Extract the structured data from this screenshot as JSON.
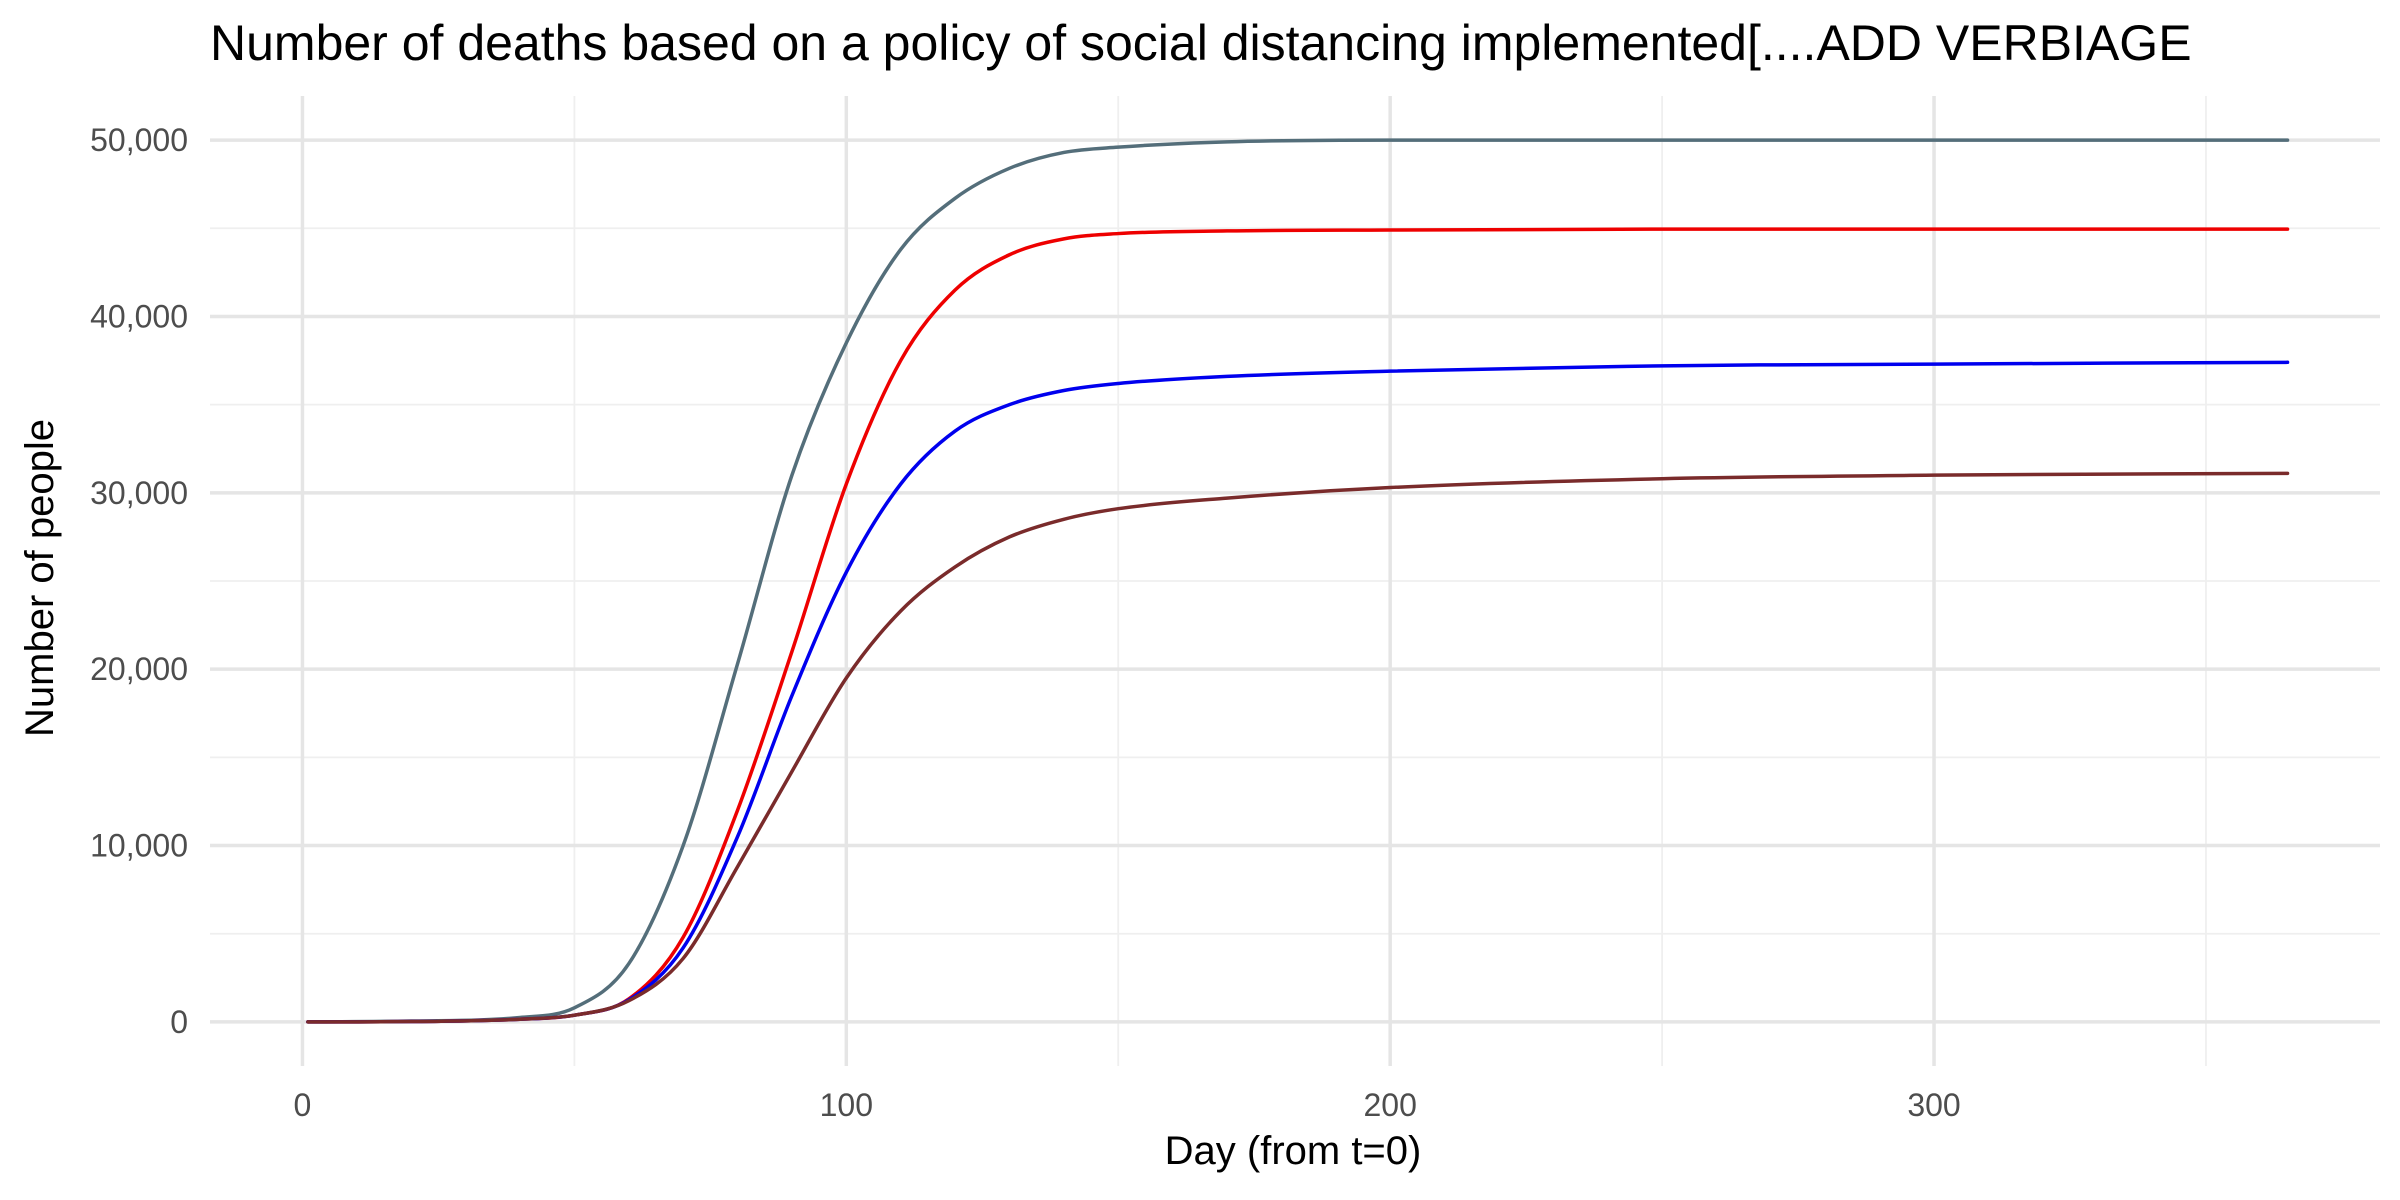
{
  "chart_data": {
    "type": "line",
    "title": "Number of deaths based on a policy of social distancing implemented[....ADD VERBIAGE",
    "xlabel": "Day (from t=0)",
    "ylabel": "Number of people",
    "xlim": [
      -17,
      382
    ],
    "ylim": [
      -2500,
      52500
    ],
    "x_ticks": [
      0,
      100,
      200,
      300
    ],
    "x_tick_labels": [
      "0",
      "100",
      "200",
      "300"
    ],
    "x_minor_ticks": [
      50,
      150,
      250,
      350
    ],
    "y_ticks": [
      0,
      10000,
      20000,
      30000,
      40000,
      50000
    ],
    "y_tick_labels": [
      "0",
      "10,000",
      "20,000",
      "30,000",
      "40,000",
      "50,000"
    ],
    "y_minor_ticks": [
      5000,
      15000,
      25000,
      35000,
      45000
    ],
    "grid": true,
    "legend": "none",
    "x": [
      1,
      20,
      40,
      50,
      60,
      70,
      80,
      90,
      100,
      110,
      120,
      130,
      140,
      150,
      170,
      200,
      250,
      300,
      365
    ],
    "series": [
      {
        "color": "#546E7A",
        "values": [
          0,
          50,
          250,
          800,
          3300,
          10000,
          20300,
          31000,
          38500,
          43800,
          46700,
          48400,
          49300,
          49600,
          49900,
          50000,
          50000,
          50000,
          50000
        ]
      },
      {
        "color": "#EE0000",
        "values": [
          0,
          20,
          150,
          380,
          1300,
          4800,
          12000,
          21000,
          30500,
          37500,
          41500,
          43500,
          44400,
          44700,
          44850,
          44900,
          44950,
          44950,
          44950
        ]
      },
      {
        "color": "#0000EE",
        "values": [
          0,
          20,
          150,
          380,
          1250,
          4200,
          10500,
          18500,
          25500,
          30500,
          33500,
          35000,
          35800,
          36200,
          36600,
          36900,
          37200,
          37300,
          37400
        ]
      },
      {
        "color": "#7A2B2B",
        "values": [
          0,
          20,
          150,
          380,
          1200,
          3600,
          8800,
          14200,
          19500,
          23300,
          25800,
          27500,
          28500,
          29100,
          29700,
          30300,
          30800,
          31000,
          31100
        ]
      }
    ]
  }
}
